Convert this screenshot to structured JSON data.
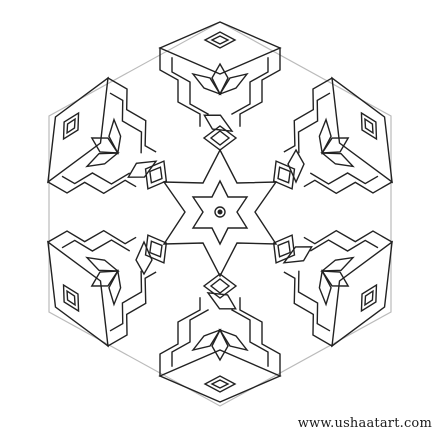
{
  "artwork": {
    "icon": "rangoli-hexagonal-star-pattern-icon",
    "stroke_color": "#222222",
    "background_color": "#ffffff",
    "symmetry_fold": 6
  },
  "watermark": {
    "text": "www.ushaatart.com"
  }
}
